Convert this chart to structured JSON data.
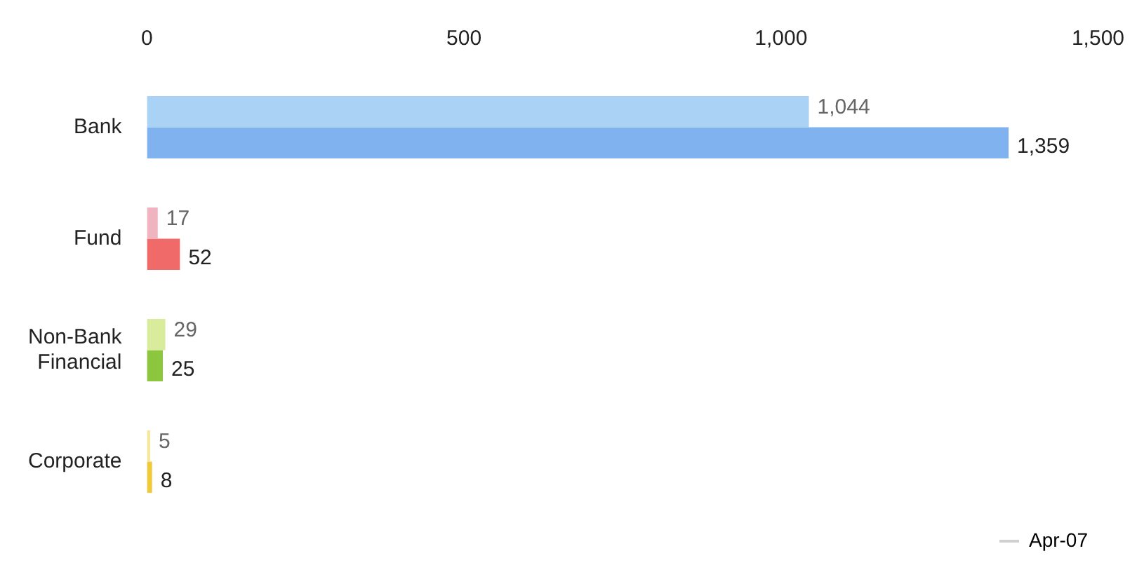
{
  "chart_data": {
    "type": "bar",
    "orientation": "horizontal",
    "categories": [
      "Bank",
      "Fund",
      "Non-Bank\nFinancial",
      "Corporate"
    ],
    "series": [
      {
        "colors": [
          "#a9d2f5",
          "#f0b3c0",
          "#d8ec9c",
          "#f7e59a"
        ],
        "values": [
          1044,
          17,
          29,
          5
        ],
        "value_labels": [
          "1,044",
          "17",
          "29",
          "5"
        ]
      },
      {
        "name": "Apr-07",
        "color": "#d0d0d0",
        "colors": [
          "#7fb2ee",
          "#f06a6a",
          "#8cc63e",
          "#f0c93a"
        ],
        "values": [
          1359,
          52,
          25,
          8
        ],
        "value_labels": [
          "1,359",
          "52",
          "25",
          "8"
        ]
      }
    ],
    "xlim": [
      0,
      1500
    ],
    "xticks": [
      0,
      500,
      {
        "value": 1000,
        "label": "1,000"
      },
      {
        "value": 1500,
        "label": "1,500"
      }
    ],
    "grid": false,
    "legend": "bottom right"
  }
}
